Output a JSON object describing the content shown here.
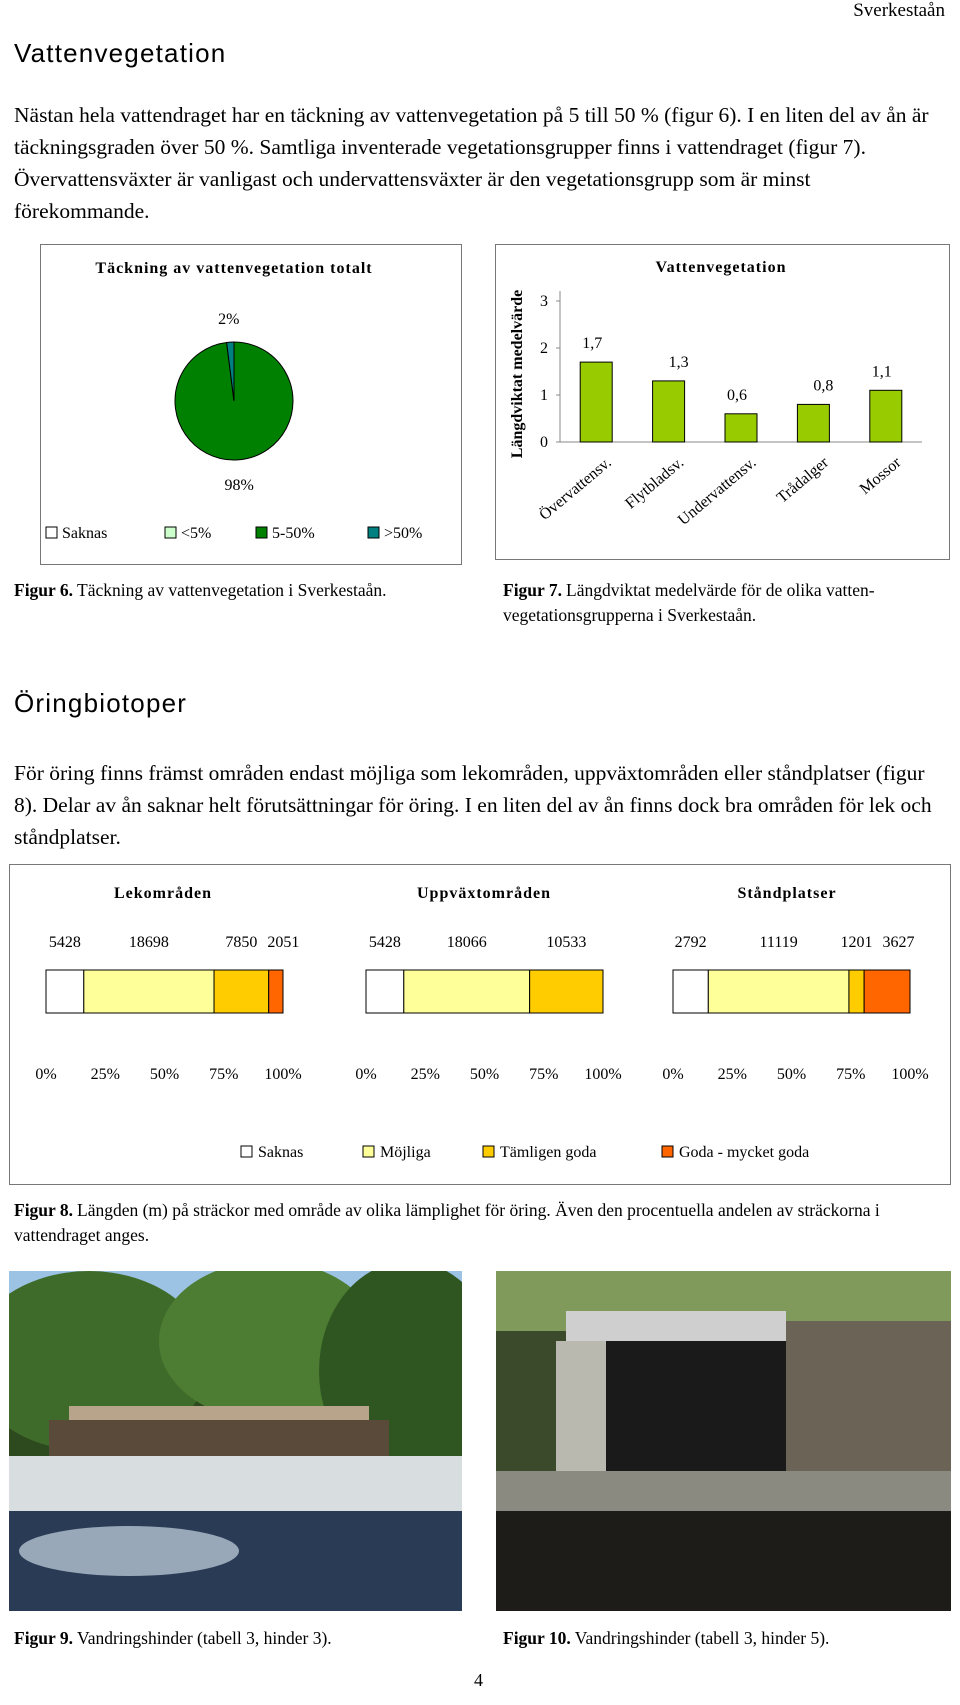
{
  "header": {
    "running_title": "Sverkestaån",
    "page_number": "4"
  },
  "sections": [
    {
      "heading": "Vattenvegetation",
      "paragraph": "Nästan hela vattendraget har en täckning av vattenvegetation på 5 till 50 % (figur 6). I en liten del av ån är täckningsgraden över 50 %. Samtliga inventerade vegetationsgrupper finns i vattendraget (figur 7). Övervattensväxter är vanligast och undervattensväxter är den vegetationsgrupp som är minst förekommande."
    },
    {
      "heading": "Öringbiotoper",
      "paragraph": "För öring finns främst områden endast möjliga som lekområden, uppväxtområden eller ståndplatser (figur 8). Delar av ån saknar helt förutsättningar för öring. I en liten del av ån finns dock bra områden för lek och ståndplatser."
    }
  ],
  "chart_data": [
    {
      "type": "pie",
      "title": "Täckning av vattenvegetation totalt",
      "categories": [
        "Saknas",
        "<5%",
        "5-50%",
        ">50%"
      ],
      "values": [
        0,
        0,
        98,
        2
      ],
      "value_labels": [
        null,
        null,
        "98%",
        "2%"
      ],
      "colors": [
        "#ffffff",
        "#ccffcc",
        "#008000",
        "#008080"
      ]
    },
    {
      "type": "bar",
      "title": "Vattenvegetation",
      "y_label": "Längdviktat medelvärde",
      "categories": [
        "Övervattensv.",
        "Flytbladsv.",
        "Undervattensv.",
        "Trådalger",
        "Mossor"
      ],
      "values": [
        1.7,
        1.3,
        0.6,
        0.8,
        1.1
      ],
      "value_labels": [
        "1,7",
        "1,3",
        "0,6",
        "0,8",
        "1,1"
      ],
      "color": "#99cc00",
      "ylim": [
        0,
        3
      ],
      "yticks": [
        0,
        1,
        2,
        3
      ]
    },
    {
      "type": "stacked-bar-100",
      "categories": [
        "Lekområden",
        "Uppväxtområden",
        "Ståndplatser"
      ],
      "series": [
        {
          "name": "Saknas",
          "color": "#ffffff",
          "values": [
            5428,
            5428,
            2792
          ]
        },
        {
          "name": "Möjliga",
          "color": "#ffff99",
          "values": [
            18698,
            18066,
            11119
          ]
        },
        {
          "name": "Tämligen goda",
          "color": "#ffcc00",
          "values": [
            7850,
            10533,
            1201
          ]
        },
        {
          "name": "Goda - mycket goda",
          "color": "#ff6600",
          "values": [
            2051,
            null,
            3627
          ]
        }
      ],
      "xlim": [
        0,
        100
      ],
      "xticks": [
        {
          "value": 0,
          "label": "0%"
        },
        {
          "value": 25,
          "label": "25%"
        },
        {
          "value": 50,
          "label": "50%"
        },
        {
          "value": 75,
          "label": "75%"
        },
        {
          "value": 100,
          "label": "100%"
        }
      ]
    }
  ],
  "captions": [
    {
      "label": "Figur 6.",
      "text": "Täckning av vattenvegetation i Sverkestaån."
    },
    {
      "label": "Figur 7.",
      "text": "Längdviktat medelvärde för de olika vatten-vegetationsgrupperna i Sverkestaån."
    },
    {
      "label": "Figur 8.",
      "text": "Längden (m) på sträckor med område av olika lämplighet för öring. Även den procentuella andelen av sträckorna i vattendraget anges."
    },
    {
      "label": "Figur 9.",
      "text": "Vandringshinder (tabell 3, hinder 3)."
    },
    {
      "label": "Figur 10.",
      "text": "Vandringshinder (tabell 3, hinder 5)."
    }
  ]
}
